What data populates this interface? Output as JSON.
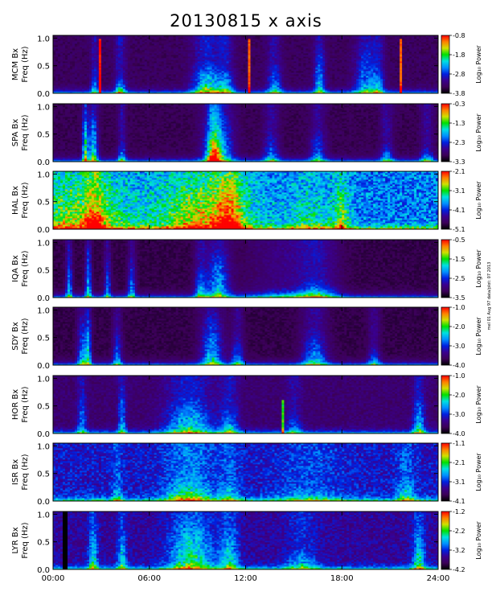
{
  "title": "20130815 x axis",
  "side_note": "mel 01 Aug 97 data/plot: 07 2013",
  "colorbar_label": "Log₁₀ Power",
  "colors": {
    "background": "#ffffff",
    "axis": "#000000",
    "plot_background": "#0a0010",
    "colormap": [
      "#000000",
      "#3c0058",
      "#3a008f",
      "#0020e0",
      "#0090ff",
      "#00e0e0",
      "#00e000",
      "#d0e000",
      "#ff8000",
      "#ff0000"
    ]
  },
  "chart_data": {
    "type": "heatmap",
    "x_tick_labels": [
      "00:00",
      "06:00",
      "12:00",
      "18:00",
      "24:00"
    ],
    "x_ticks_hours": [
      0,
      6,
      12,
      18,
      24
    ],
    "xlim_hours": [
      0,
      24
    ],
    "y_tick_labels": [
      "0.0",
      "0.5",
      "1.0"
    ],
    "ylim": [
      0,
      1.05
    ],
    "panels": [
      {
        "station": "MCM Bx",
        "ylabel": "Freq (Hz)",
        "colorbar_ticks": [
          "-0.8",
          "-1.8",
          "-2.8",
          "-3.8"
        ],
        "zlim": [
          -3.8,
          -0.8
        ],
        "noise": 0.16,
        "events": [
          [
            2.6,
            0.25,
            0.5,
            0.45
          ],
          [
            4.2,
            0.35,
            0.3,
            0.55
          ],
          [
            9.6,
            0.9,
            0.6,
            0.65
          ],
          [
            10.8,
            0.5,
            0.45,
            0.5
          ],
          [
            13.8,
            0.45,
            0.6,
            0.45
          ],
          [
            16.6,
            0.35,
            0.9,
            0.5
          ],
          [
            19.5,
            0.7,
            0.95,
            0.45
          ],
          [
            20.3,
            0.4,
            0.5,
            0.4
          ]
        ],
        "lines": [
          [
            2.9,
            1.0,
            0.85
          ],
          [
            12.2,
            1.0,
            0.8
          ],
          [
            21.7,
            1.0,
            0.8
          ]
        ],
        "dark_band": null
      },
      {
        "station": "SPA Bx",
        "ylabel": "Freq (Hz)",
        "colorbar_ticks": [
          "-0.3",
          "-1.3",
          "-2.3",
          "-3.3"
        ],
        "zlim": [
          -3.3,
          -0.3
        ],
        "noise": 0.14,
        "events": [
          [
            2.0,
            0.18,
            1.0,
            0.7
          ],
          [
            2.5,
            0.3,
            0.9,
            0.65
          ],
          [
            4.3,
            0.25,
            0.4,
            0.5
          ],
          [
            10.3,
            0.9,
            1.0,
            0.6
          ],
          [
            10.0,
            0.4,
            0.6,
            0.7
          ],
          [
            13.6,
            0.5,
            0.5,
            0.45
          ],
          [
            16.5,
            0.5,
            0.7,
            0.4
          ],
          [
            20.8,
            0.4,
            0.35,
            0.45
          ],
          [
            23.3,
            0.4,
            0.3,
            0.45
          ]
        ],
        "lines": [],
        "dark_band": null
      },
      {
        "station": "HAL Bx",
        "ylabel": "Freq (Hz)",
        "colorbar_ticks": [
          "-2.1",
          "-3.1",
          "-4.1",
          "-5.1"
        ],
        "zlim": [
          -5.1,
          -2.1
        ],
        "noise": 0.55,
        "events": [
          [
            1.6,
            3.2,
            1.0,
            0.45
          ],
          [
            9.5,
            2.8,
            1.0,
            0.55
          ],
          [
            2.6,
            0.6,
            0.45,
            0.55
          ],
          [
            11.0,
            0.8,
            1.0,
            0.45
          ],
          [
            16.0,
            1.5,
            0.7,
            0.25
          ],
          [
            18.0,
            0.5,
            0.8,
            0.4
          ]
        ],
        "lines": [],
        "dark_band": null
      },
      {
        "station": "IQA Bx",
        "ylabel": "Freq (Hz)",
        "colorbar_ticks": [
          "-0.5",
          "-1.5",
          "-2.5",
          "-3.5"
        ],
        "zlim": [
          -3.5,
          -0.5
        ],
        "noise": 0.12,
        "events": [
          [
            1.0,
            0.2,
            1.0,
            0.5
          ],
          [
            2.2,
            0.2,
            1.0,
            0.55
          ],
          [
            3.4,
            0.2,
            0.9,
            0.45
          ],
          [
            4.9,
            0.25,
            0.8,
            0.45
          ],
          [
            10.3,
            0.7,
            1.0,
            0.55
          ],
          [
            9.2,
            0.4,
            0.6,
            0.5
          ],
          [
            16.5,
            1.2,
            0.35,
            0.45
          ],
          [
            14.5,
            2.5,
            0.2,
            0.35
          ]
        ],
        "lines": [],
        "dark_band": null
      },
      {
        "station": "SDY Bx",
        "ylabel": "Freq (Hz)",
        "colorbar_ticks": [
          "-1.0",
          "-2.0",
          "-3.0",
          "-4.0"
        ],
        "zlim": [
          -4.0,
          -1.0
        ],
        "noise": 0.12,
        "events": [
          [
            1.8,
            0.3,
            0.9,
            0.5
          ],
          [
            2.2,
            0.2,
            1.0,
            0.55
          ],
          [
            4.0,
            0.3,
            0.7,
            0.45
          ],
          [
            9.9,
            0.7,
            1.0,
            0.55
          ],
          [
            11.5,
            0.4,
            0.6,
            0.45
          ],
          [
            16.3,
            0.8,
            0.7,
            0.5
          ],
          [
            20.0,
            0.4,
            0.4,
            0.4
          ]
        ],
        "lines": [],
        "dark_band": null
      },
      {
        "station": "HOR Bx",
        "ylabel": "Freq (Hz)",
        "colorbar_ticks": [
          "-1.0",
          "-2.0",
          "-3.0",
          "-4.0"
        ],
        "zlim": [
          -4.0,
          -1.0
        ],
        "noise": 0.2,
        "events": [
          [
            1.8,
            0.3,
            0.8,
            0.4
          ],
          [
            4.3,
            0.25,
            0.9,
            0.45
          ],
          [
            8.5,
            1.5,
            0.7,
            0.55
          ],
          [
            11.0,
            0.6,
            0.5,
            0.45
          ],
          [
            15.0,
            0.5,
            0.4,
            0.35
          ],
          [
            22.8,
            0.4,
            0.7,
            0.5
          ]
        ],
        "lines": [
          [
            14.3,
            0.6,
            0.5
          ]
        ],
        "dark_band": null
      },
      {
        "station": "ISR Bx",
        "ylabel": "Freq (Hz)",
        "colorbar_ticks": [
          "-1.1",
          "-2.1",
          "-3.1",
          "-4.1"
        ],
        "zlim": [
          -4.1,
          -1.1
        ],
        "noise": 0.38,
        "events": [
          [
            8.5,
            1.4,
            0.5,
            0.5
          ],
          [
            4.0,
            0.3,
            0.4,
            0.35
          ],
          [
            11.0,
            0.6,
            0.35,
            0.35
          ],
          [
            22.0,
            0.6,
            0.5,
            0.35
          ],
          [
            16.0,
            2.0,
            0.3,
            0.25
          ]
        ],
        "lines": [],
        "dark_band": null
      },
      {
        "station": "LYR Bx",
        "ylabel": "Freq (Hz)",
        "colorbar_ticks": [
          "-1.2",
          "-2.2",
          "-3.2",
          "-4.2"
        ],
        "zlim": [
          -4.2,
          -1.2
        ],
        "noise": 0.3,
        "events": [
          [
            8.6,
            1.4,
            1.0,
            0.55
          ],
          [
            2.5,
            0.3,
            0.9,
            0.45
          ],
          [
            4.3,
            0.3,
            0.7,
            0.45
          ],
          [
            11.0,
            0.6,
            0.8,
            0.45
          ],
          [
            15.5,
            1.0,
            0.4,
            0.35
          ],
          [
            22.8,
            0.4,
            0.8,
            0.5
          ]
        ],
        "lines": [],
        "dark_band": [
          0.55,
          0.85
        ]
      }
    ]
  }
}
